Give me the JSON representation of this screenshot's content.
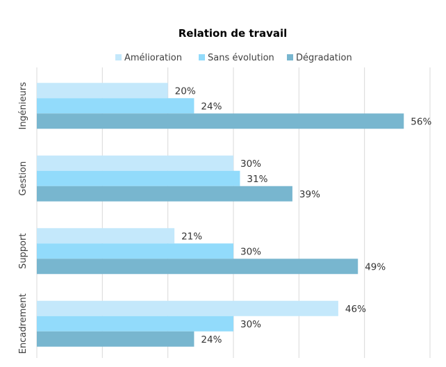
{
  "chart_data": {
    "type": "bar",
    "orientation": "horizontal",
    "title": "Relation de travail",
    "categories": [
      "Ingénieurs",
      "Gestion",
      "Support",
      "Encadrement"
    ],
    "series": [
      {
        "name": "Amélioration",
        "color": "#c4e8fb",
        "values": [
          20,
          30,
          21,
          46
        ],
        "labels": [
          "20%",
          "30%",
          "21%",
          "46%"
        ]
      },
      {
        "name": "Sans évolution",
        "color": "#92dbfb",
        "values": [
          24,
          31,
          30,
          30
        ],
        "labels": [
          "24%",
          "31%",
          "30%",
          "30%"
        ]
      },
      {
        "name": "Dégradation",
        "color": "#78b6cf",
        "values": [
          56,
          39,
          49,
          24
        ],
        "labels": [
          "56%",
          "39%",
          "49%",
          "24%"
        ]
      }
    ],
    "xlim": [
      0,
      60
    ],
    "grid": true,
    "legend": "top",
    "value_unit": "%"
  }
}
